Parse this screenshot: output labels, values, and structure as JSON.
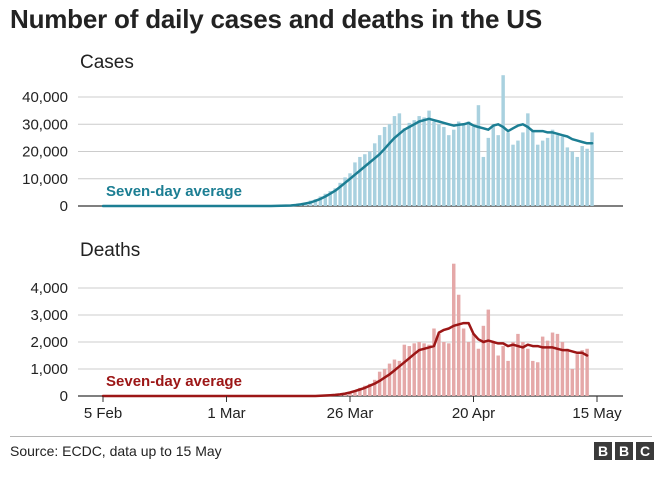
{
  "title": "Number of daily cases and deaths in the US",
  "source": "Source: ECDC, data up to 15 May",
  "logo": [
    "B",
    "B",
    "C"
  ],
  "colors": {
    "cases_bar": "#a9d1df",
    "cases_line": "#1c7e93",
    "deaths_bar": "#e5a8a8",
    "deaths_line": "#9c1616",
    "grid": "#cccccc",
    "text": "#222222"
  },
  "chart_data": [
    {
      "type": "bar",
      "name": "cases",
      "title": "Cases",
      "line_label": "Seven-day average",
      "x_start": "5 Feb",
      "x_end": "15 May",
      "xlabel": "",
      "ylabel": "",
      "ylim": [
        0,
        50000
      ],
      "yticks": [
        0,
        10000,
        20000,
        30000,
        40000
      ],
      "ytick_labels": [
        "0",
        "10,000",
        "20,000",
        "30,000",
        "40,000"
      ],
      "grid": true,
      "series": [
        {
          "name": "Daily cases",
          "style": "bars",
          "values": [
            0,
            0,
            0,
            0,
            0,
            0,
            0,
            0,
            0,
            0,
            0,
            0,
            0,
            0,
            0,
            0,
            0,
            0,
            0,
            0,
            0,
            0,
            0,
            0,
            0,
            0,
            0,
            0,
            0,
            0,
            0,
            0,
            0,
            0,
            20,
            80,
            120,
            200,
            300,
            400,
            700,
            1000,
            2000,
            2500,
            3500,
            4500,
            5500,
            6500,
            8500,
            10500,
            12000,
            16000,
            18000,
            19000,
            20000,
            23000,
            26000,
            29000,
            30000,
            33000,
            34000,
            28500,
            30500,
            31500,
            33000,
            32500,
            35000,
            31000,
            30000,
            29000,
            26000,
            28000,
            31000,
            30000,
            31000,
            29000,
            37000,
            18000,
            25000,
            30000,
            26000,
            48000,
            27000,
            22500,
            24000,
            27000,
            34000,
            27500,
            22500,
            24000,
            25000,
            28000,
            26000,
            25500,
            21500,
            20000,
            18000,
            22000,
            21000,
            27000
          ]
        },
        {
          "name": "Seven-day average",
          "style": "line",
          "values": [
            0,
            0,
            0,
            0,
            0,
            0,
            0,
            0,
            0,
            0,
            0,
            0,
            0,
            0,
            0,
            0,
            0,
            0,
            0,
            0,
            0,
            0,
            0,
            0,
            0,
            0,
            0,
            0,
            0,
            0,
            0,
            0,
            0,
            0,
            10,
            40,
            80,
            130,
            200,
            350,
            600,
            900,
            1300,
            1900,
            2600,
            3500,
            4500,
            5600,
            7000,
            8500,
            10000,
            11500,
            13000,
            14500,
            16000,
            17500,
            19000,
            21000,
            23000,
            25000,
            26500,
            28000,
            29000,
            30000,
            31000,
            31500,
            32000,
            31500,
            31000,
            30500,
            30000,
            29500,
            29800,
            30000,
            30500,
            29500,
            29000,
            28500,
            28000,
            29500,
            30000,
            29000,
            27500,
            28500,
            29500,
            30000,
            29000,
            27500,
            27500,
            27500,
            27000,
            27000,
            26500,
            26000,
            25500,
            24500,
            24000,
            23500,
            23000,
            23000
          ]
        }
      ]
    },
    {
      "type": "bar",
      "name": "deaths",
      "title": "Deaths",
      "line_label": "Seven-day average",
      "x_start": "5 Feb",
      "x_end": "15 May",
      "xlabel": "",
      "ylabel": "",
      "ylim": [
        0,
        5000
      ],
      "yticks": [
        0,
        1000,
        2000,
        3000,
        4000
      ],
      "ytick_labels": [
        "0",
        "1,000",
        "2,000",
        "3,000",
        "4,000"
      ],
      "xticks": [
        "5 Feb",
        "1 Mar",
        "26 Mar",
        "20 Apr",
        "15 May"
      ],
      "xtick_index": [
        0,
        25,
        50,
        75,
        100
      ],
      "grid": true,
      "series": [
        {
          "name": "Daily deaths",
          "style": "bars",
          "values": [
            0,
            0,
            0,
            0,
            0,
            0,
            0,
            0,
            0,
            0,
            0,
            0,
            0,
            0,
            0,
            0,
            0,
            0,
            0,
            0,
            0,
            0,
            0,
            0,
            0,
            0,
            0,
            0,
            0,
            0,
            0,
            0,
            0,
            0,
            0,
            0,
            0,
            0,
            0,
            0,
            0,
            0,
            0,
            0,
            0,
            0,
            0,
            0,
            50,
            100,
            150,
            200,
            300,
            380,
            450,
            600,
            900,
            1000,
            1200,
            1350,
            1300,
            1900,
            1850,
            1950,
            2000,
            1950,
            1900,
            2500,
            2300,
            2000,
            1950,
            4900,
            3750,
            2500,
            2000,
            2300,
            1750,
            2600,
            3200,
            2000,
            1500,
            1850,
            1300,
            2000,
            2300,
            2000,
            1750,
            1300,
            1250,
            2200,
            2050,
            2350,
            2300,
            2000,
            1750,
            1000,
            1550,
            1700,
            1750
          ]
        },
        {
          "name": "Seven-day average",
          "style": "line",
          "values": [
            0,
            0,
            0,
            0,
            0,
            0,
            0,
            0,
            0,
            0,
            0,
            0,
            0,
            0,
            0,
            0,
            0,
            0,
            0,
            0,
            0,
            0,
            0,
            0,
            0,
            0,
            0,
            0,
            0,
            0,
            0,
            0,
            0,
            0,
            0,
            0,
            0,
            0,
            0,
            0,
            0,
            0,
            0,
            0,
            10,
            20,
            30,
            40,
            60,
            90,
            130,
            180,
            240,
            300,
            380,
            460,
            560,
            680,
            800,
            950,
            1100,
            1250,
            1400,
            1550,
            1700,
            1750,
            1800,
            1850,
            2350,
            2450,
            2500,
            2600,
            2650,
            2700,
            2700,
            2300,
            2100,
            2000,
            2050,
            2000,
            1950,
            1950,
            1850,
            1900,
            1850,
            1800,
            1900,
            1850,
            1850,
            1800,
            1800,
            1800,
            1750,
            1700,
            1700,
            1650,
            1600,
            1600,
            1500
          ]
        }
      ]
    }
  ]
}
